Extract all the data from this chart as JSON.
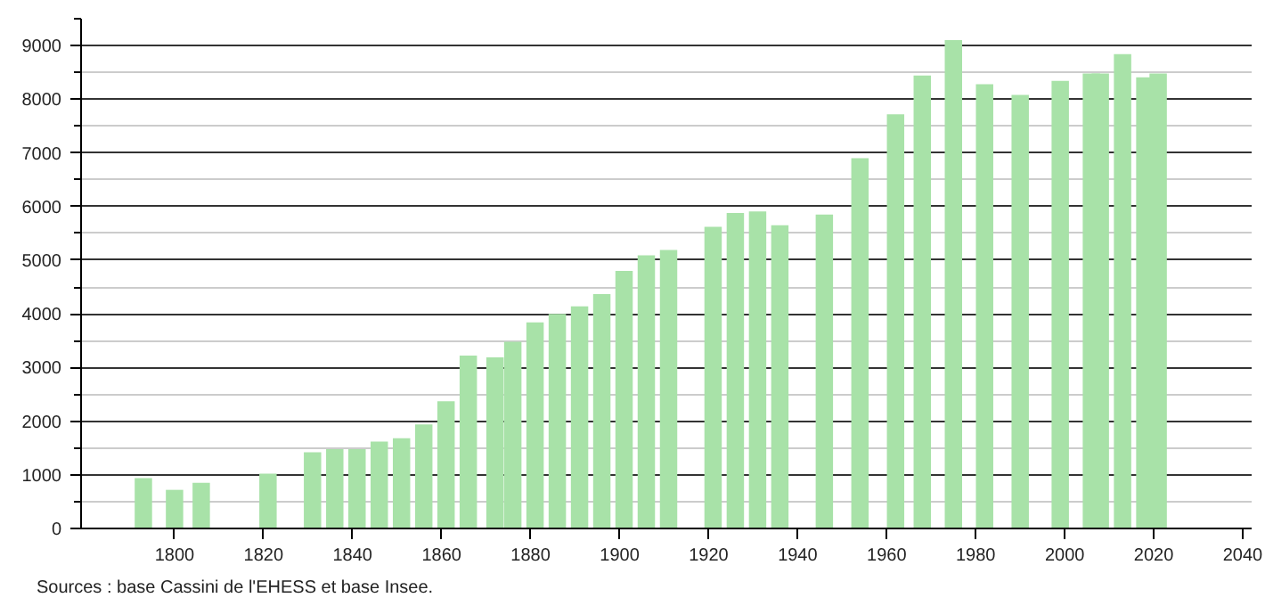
{
  "chart_data": {
    "type": "bar",
    "x": [
      1793,
      1800,
      1806,
      1821,
      1831,
      1836,
      1841,
      1846,
      1851,
      1856,
      1861,
      1866,
      1872,
      1876,
      1881,
      1886,
      1891,
      1896,
      1901,
      1906,
      1911,
      1921,
      1926,
      1931,
      1936,
      1946,
      1954,
      1962,
      1968,
      1975,
      1982,
      1990,
      1999,
      2006,
      2008,
      2013,
      2018,
      2021
    ],
    "values": [
      940,
      720,
      850,
      1020,
      1420,
      1480,
      1480,
      1620,
      1680,
      1940,
      2370,
      3220,
      3190,
      3480,
      3840,
      4000,
      4140,
      4370,
      4800,
      5090,
      5190,
      5620,
      5880,
      5910,
      5650,
      5850,
      6900,
      7720,
      8440,
      9100,
      8280,
      8080,
      8340,
      8480,
      8480,
      8840,
      8410,
      8480
    ],
    "color": "#a8e2a8",
    "xlim": [
      1779,
      2042
    ],
    "xticks": [
      1800,
      1820,
      1840,
      1860,
      1880,
      1900,
      1920,
      1940,
      1960,
      1980,
      2000,
      2020,
      2040
    ],
    "ylim": [
      0,
      9500
    ],
    "yticks": [
      0,
      1000,
      2000,
      3000,
      4000,
      5000,
      6000,
      7000,
      8000,
      9000
    ],
    "grid": "y",
    "annotations": [
      "Sources : base Cassini de l'EHESS et base Insee."
    ]
  }
}
